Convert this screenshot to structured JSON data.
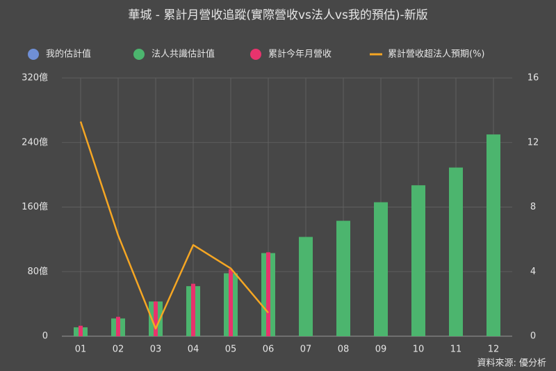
{
  "chart_data": {
    "type": "bar_line",
    "title": "華城 - 累計月營收追蹤(實際營收vs法人vs我的預估)-新版",
    "source": "資料來源: 優分析",
    "categories": [
      "01",
      "02",
      "03",
      "04",
      "05",
      "06",
      "07",
      "08",
      "09",
      "10",
      "11",
      "12"
    ],
    "series": [
      {
        "name": "我的估計值",
        "color": "#6f8fd6",
        "kind": "bar",
        "values": [
          null,
          null,
          null,
          null,
          null,
          null,
          null,
          null,
          null,
          null,
          null,
          null
        ]
      },
      {
        "name": "法人共識估計值",
        "color": "#4cb56e",
        "kind": "bar",
        "values": [
          11,
          22,
          43,
          62,
          78,
          103,
          123,
          143,
          166,
          187,
          209,
          250
        ]
      },
      {
        "name": "累計今年月營收",
        "color": "#e8336d",
        "kind": "bar",
        "values": [
          13,
          24,
          43,
          65,
          83,
          104,
          null,
          null,
          null,
          null,
          null,
          null
        ]
      },
      {
        "name": "累計營收超法人預期(%)",
        "color": "#f5a623",
        "kind": "line",
        "axis": "y2",
        "values": [
          13.3,
          6.25,
          0.47,
          5.65,
          4.2,
          1.45,
          null,
          null,
          null,
          null,
          null,
          null
        ]
      }
    ],
    "ylim": [
      0,
      320
    ],
    "yticks": [
      0,
      {
        "value": 80,
        "label": "80億"
      },
      {
        "value": 160,
        "label": "160億"
      },
      {
        "value": 240,
        "label": "240億"
      },
      {
        "value": 320,
        "label": "320億"
      }
    ],
    "y2lim": [
      0,
      16
    ],
    "y2ticks": [
      0,
      4,
      8,
      12,
      16
    ],
    "grid": true
  }
}
